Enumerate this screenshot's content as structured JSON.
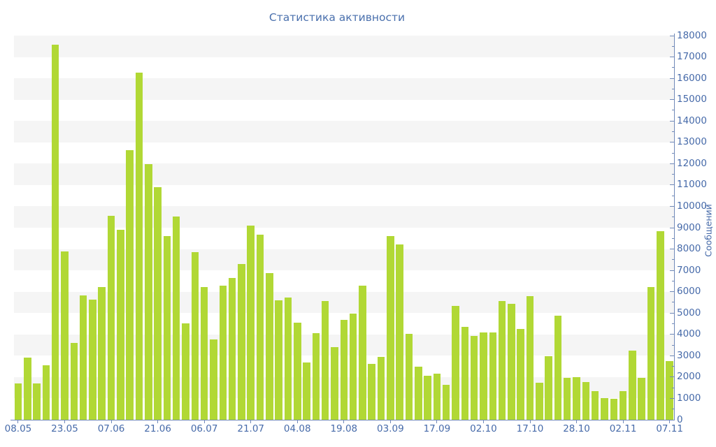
{
  "chart_data": {
    "type": "bar",
    "title": "Статистика активности",
    "xlabel": "",
    "ylabel": "Сообщений",
    "ylim": [
      0,
      18000
    ],
    "y_tick_step": 1000,
    "y_minor_tick_step": 500,
    "y_tick_labels": [
      "0",
      "1000",
      "2000",
      "3000",
      "4000",
      "5000",
      "6000",
      "7000",
      "8000",
      "9000",
      "10000",
      "11000",
      "12000",
      "13000",
      "14000",
      "15000",
      "16000",
      "17000",
      "18000"
    ],
    "x_tick_labels": [
      "08.05",
      "23.05",
      "07.06",
      "21.06",
      "06.07",
      "21.07",
      "04.08",
      "19.08",
      "03.09",
      "17.09",
      "02.10",
      "17.10",
      "28.10",
      "02.11",
      "07.11"
    ],
    "x_tick_every_n_bars": 5,
    "legend_position": "none",
    "grid": "horizontal stripes, alternating every 1000 units, gray band from 17000-18000 downward",
    "values": [
      1700,
      2900,
      1700,
      2540,
      17590,
      7880,
      3610,
      5830,
      5640,
      6230,
      9550,
      8910,
      12630,
      16270,
      11990,
      10910,
      8620,
      9520,
      4530,
      7850,
      6230,
      3750,
      6300,
      6630,
      7300,
      9090,
      8670,
      6870,
      5610,
      5720,
      4540,
      2680,
      4050,
      5550,
      3390,
      4680,
      4970,
      6270,
      2620,
      2950,
      8620,
      8200,
      4020,
      2500,
      2050,
      2150,
      1640,
      5340,
      4350,
      3940,
      4100,
      4100,
      5580,
      5420,
      4270,
      5780,
      1730,
      2990,
      4870,
      1970,
      2000,
      1780,
      1330,
      1020,
      990,
      1350,
      3230,
      1970,
      6210,
      8840,
      2760
    ],
    "colors": {
      "bar": "#b1d835",
      "stripe": "#f5f5f5",
      "plot_background": "#ffffff",
      "axis_line": "#7089b8",
      "tick_label": "#466aa9",
      "title": "#4a70ad"
    }
  }
}
